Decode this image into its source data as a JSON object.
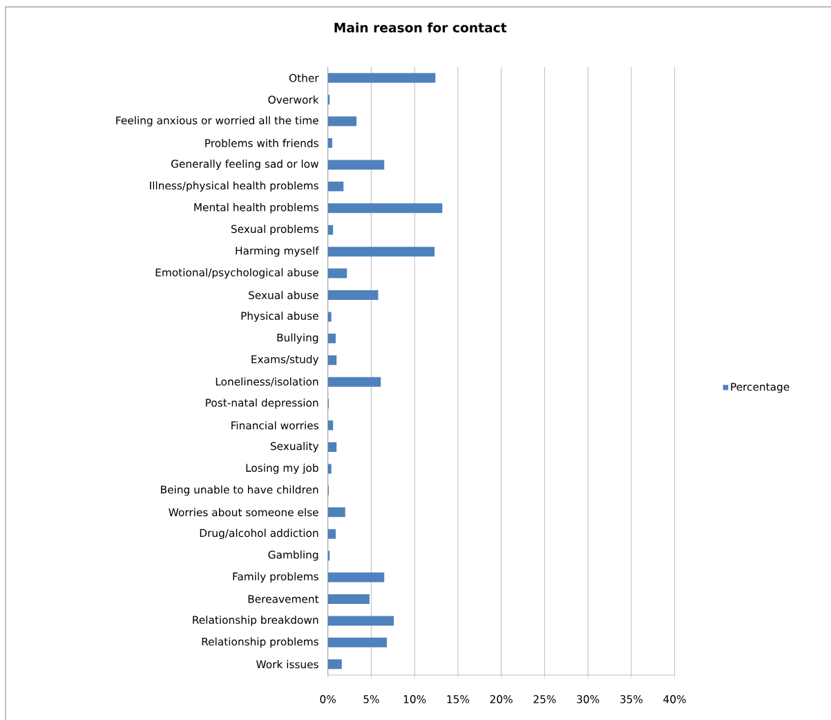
{
  "chart_data": {
    "type": "bar",
    "orientation": "horizontal",
    "title": "Main reason for contact",
    "categories": [
      "Other",
      "Overwork",
      "Feeling anxious or worried all the time",
      "Problems with friends",
      "Generally feeling sad or low",
      "Illness/physical health problems",
      "Mental health problems",
      "Sexual problems",
      "Harming myself",
      "Emotional/psychological abuse",
      "Sexual abuse",
      "Physical abuse",
      "Bullying",
      "Exams/study",
      "Loneliness/isolation",
      "Post-natal depression",
      "Financial worries",
      "Sexuality",
      "Losing my job",
      "Being unable to have children",
      "Worries about someone else",
      "Drug/alcohol addiction",
      "Gambling",
      "Family problems",
      "Bereavement",
      "Relationship breakdown",
      "Relationship problems",
      "Work issues"
    ],
    "series": [
      {
        "name": "Percentage",
        "color": "#4f81bd",
        "values": [
          12.4,
          0.2,
          3.3,
          0.5,
          6.5,
          1.8,
          13.2,
          0.6,
          12.3,
          2.2,
          5.8,
          0.4,
          0.9,
          1.0,
          6.1,
          0.1,
          0.6,
          1.0,
          0.4,
          0.1,
          2.0,
          0.9,
          0.2,
          6.5,
          4.8,
          7.6,
          6.8,
          1.6
        ]
      }
    ],
    "xlim": [
      0,
      40
    ],
    "xticks": [
      {
        "value": 0,
        "label": "0%"
      },
      {
        "value": 5,
        "label": "5%"
      },
      {
        "value": 10,
        "label": "10%"
      },
      {
        "value": 15,
        "label": "15%"
      },
      {
        "value": 20,
        "label": "20%"
      },
      {
        "value": 25,
        "label": "25%"
      },
      {
        "value": 30,
        "label": "30%"
      },
      {
        "value": 35,
        "label": "35%"
      },
      {
        "value": 40,
        "label": "40%"
      }
    ],
    "grid": "x",
    "legend": "right"
  }
}
